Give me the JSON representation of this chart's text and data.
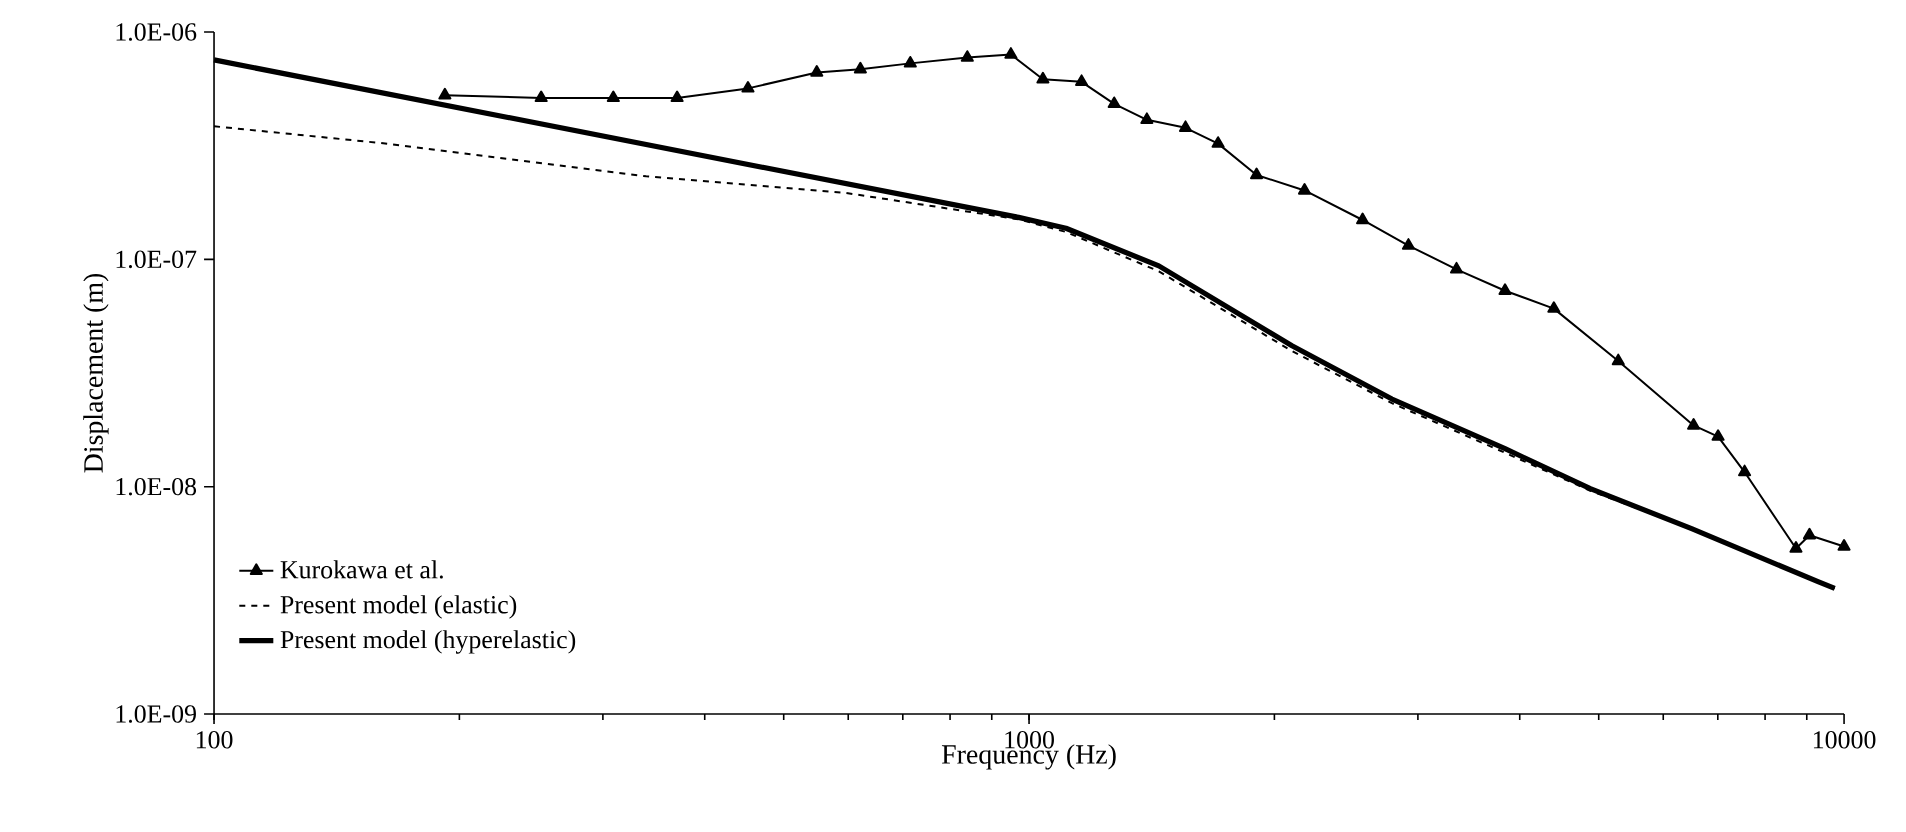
{
  "chart_data": {
    "type": "line",
    "xlabel": "Frequency (Hz)",
    "ylabel": "Displacement (m)",
    "log": "xy",
    "xlim": [
      100,
      10000
    ],
    "ylim": [
      1e-09,
      1e-06
    ],
    "xticks": [
      100,
      1000,
      10000
    ],
    "yticks": [
      {
        "value": 1e-09,
        "label": "1.0E-09"
      },
      {
        "value": 1e-08,
        "label": "1.0E-08"
      },
      {
        "value": 1e-07,
        "label": "1.0E-07"
      },
      {
        "value": 1e-06,
        "label": "1.0E-06"
      }
    ],
    "legend": "bottom left",
    "series": [
      {
        "name": "Kurokawa et al.",
        "color": "#000000",
        "marker": "triangle",
        "line_style": "solid",
        "x": [
          192,
          252,
          309,
          370,
          452,
          549,
          621,
          715,
          840,
          950,
          1040,
          1160,
          1272,
          1395,
          1556,
          1706,
          1902,
          2178,
          2566,
          2921,
          3346,
          3838,
          4405,
          5284,
          6538,
          7006,
          7551,
          8730,
          9070,
          10000
        ],
        "values": [
          5.27e-07,
          5.13e-07,
          5.13e-07,
          5.13e-07,
          5.65e-07,
          6.64e-07,
          6.86e-07,
          7.28e-07,
          7.72e-07,
          7.96e-07,
          6.2e-07,
          6.04e-07,
          4.83e-07,
          4.11e-07,
          3.79e-07,
          3.23e-07,
          2.35e-07,
          2.01e-07,
          1.49e-07,
          1.15e-07,
          9.04e-08,
          7.28e-08,
          6.07e-08,
          3.57e-08,
          1.86e-08,
          1.66e-08,
          1.16e-08,
          5.35e-09,
          6.12e-09,
          5.46e-09
        ]
      },
      {
        "name": "Present model (elastic)",
        "color": "#000000",
        "marker": "none",
        "line_style": "dashed",
        "x": [
          100,
          160,
          339,
          596,
          971,
          1110,
          1443,
          2102,
          2788,
          3838,
          4883,
          6501,
          9740
        ],
        "values": [
          3.85e-07,
          3.25e-07,
          2.32e-07,
          1.96e-07,
          1.5e-07,
          1.32e-07,
          8.86e-08,
          3.95e-08,
          2.33e-08,
          1.41e-08,
          9.6e-09,
          6.54e-09,
          3.57e-09
        ]
      },
      {
        "name": "Present model (hyperelastic)",
        "color": "#000000",
        "marker": "none",
        "line_style": "solid",
        "x": [
          100,
          971,
          1110,
          1443,
          2102,
          2788,
          3838,
          4883,
          6501,
          9290,
          9740
        ],
        "values": [
          7.54e-07,
          1.53e-07,
          1.37e-07,
          9.36e-08,
          4.17e-08,
          2.43e-08,
          1.47e-08,
          9.8e-09,
          6.54e-09,
          3.82e-09,
          3.57e-09
        ]
      }
    ]
  }
}
